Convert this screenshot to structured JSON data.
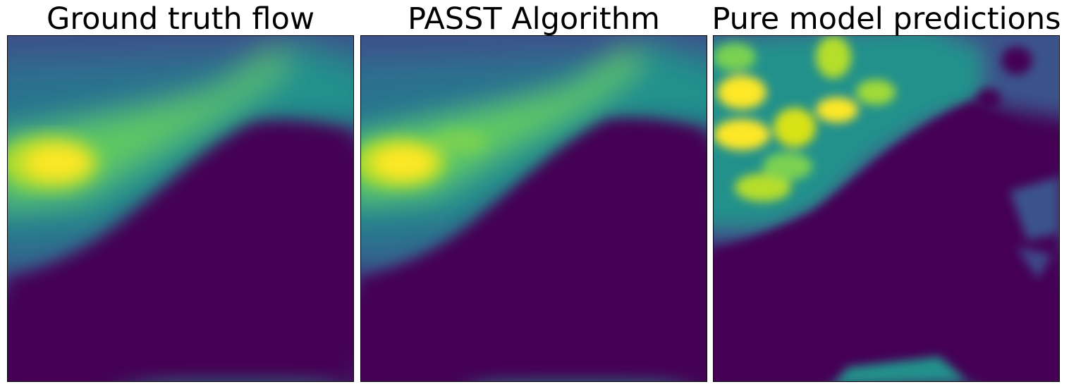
{
  "figure": {
    "panels": [
      {
        "title": "Ground truth flow"
      },
      {
        "title": "PASST Algorithm"
      },
      {
        "title": "Pure model predictions"
      }
    ],
    "colormap": {
      "name": "viridis",
      "low": "#440154",
      "mid": "#21918c",
      "high": "#fde725"
    }
  }
}
